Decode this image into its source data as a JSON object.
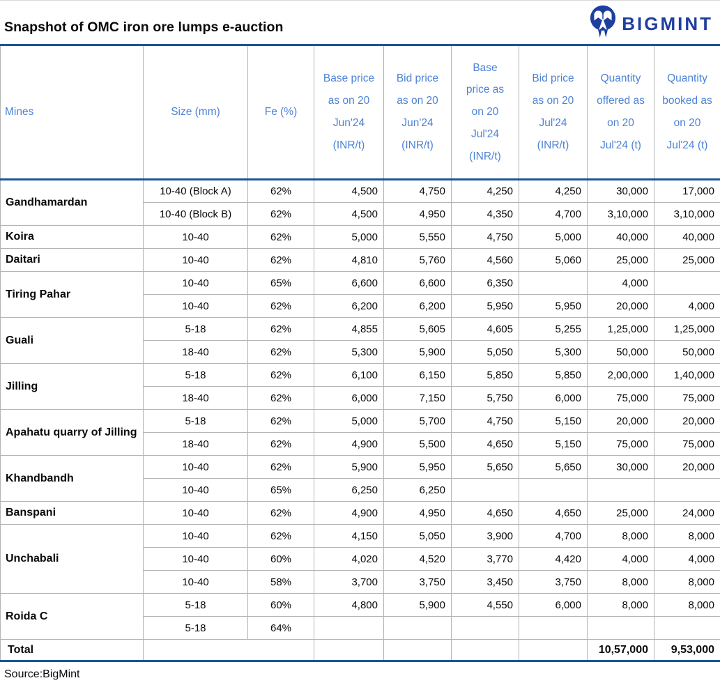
{
  "header": {
    "title": "Snapshot of OMC iron ore lumps e-auction",
    "logo_text": "BIGMINT"
  },
  "footer": {
    "source": "Source:BigMint"
  },
  "colors": {
    "accent_line_blue": "#1a5599",
    "header_text_blue": "#4d82d6",
    "logo_navy": "#1e3fa0",
    "grid_gray": "#b3b3b3"
  },
  "chart_data": {
    "type": "table",
    "title": "Snapshot of OMC iron ore lumps e-auction",
    "source": "Source:BigMint",
    "columns": [
      "Mines",
      "Size (mm)",
      "Fe (%)",
      "Base price as on 20 Jun'24 (INR/t)",
      "Bid price as on 20 Jun'24 (INR/t)",
      "Base price as on 20 Jul'24 (INR/t)",
      "Bid price as on 20 Jul'24 (INR/t)",
      "Quantity offered as on 20 Jul'24 (t)",
      "Quantity booked as on 20 Jul'24 (t)"
    ],
    "groups": [
      {
        "mine": "Gandhamardan",
        "rows": [
          {
            "size": "10-40 (Block A)",
            "fe": "62%",
            "base_jun": "4,500",
            "bid_jun": "4,750",
            "base_jul": "4,250",
            "bid_jul": "4,250",
            "qty_offered": "30,000",
            "qty_booked": "17,000"
          },
          {
            "size": "10-40 (Block B)",
            "fe": "62%",
            "base_jun": "4,500",
            "bid_jun": "4,950",
            "base_jul": "4,350",
            "bid_jul": "4,700",
            "qty_offered": "3,10,000",
            "qty_booked": "3,10,000"
          }
        ]
      },
      {
        "mine": "Koira",
        "rows": [
          {
            "size": "10-40",
            "fe": "62%",
            "base_jun": "5,000",
            "bid_jun": "5,550",
            "base_jul": "4,750",
            "bid_jul": "5,000",
            "qty_offered": "40,000",
            "qty_booked": "40,000"
          }
        ]
      },
      {
        "mine": "Daitari",
        "rows": [
          {
            "size": "10-40",
            "fe": "62%",
            "base_jun": "4,810",
            "bid_jun": "5,760",
            "base_jul": "4,560",
            "bid_jul": "5,060",
            "qty_offered": "25,000",
            "qty_booked": "25,000"
          }
        ]
      },
      {
        "mine": "Tiring Pahar",
        "rows": [
          {
            "size": "10-40",
            "fe": "65%",
            "base_jun": "6,600",
            "bid_jun": "6,600",
            "base_jul": "6,350",
            "bid_jul": "",
            "qty_offered": "4,000",
            "qty_booked": ""
          },
          {
            "size": "10-40",
            "fe": "62%",
            "base_jun": "6,200",
            "bid_jun": "6,200",
            "base_jul": "5,950",
            "bid_jul": "5,950",
            "qty_offered": "20,000",
            "qty_booked": "4,000"
          }
        ]
      },
      {
        "mine": "Guali",
        "rows": [
          {
            "size": "5-18",
            "fe": "62%",
            "base_jun": "4,855",
            "bid_jun": "5,605",
            "base_jul": "4,605",
            "bid_jul": "5,255",
            "qty_offered": "1,25,000",
            "qty_booked": "1,25,000"
          },
          {
            "size": "18-40",
            "fe": "62%",
            "base_jun": "5,300",
            "bid_jun": "5,900",
            "base_jul": "5,050",
            "bid_jul": "5,300",
            "qty_offered": "50,000",
            "qty_booked": "50,000"
          }
        ]
      },
      {
        "mine": "Jilling",
        "rows": [
          {
            "size": "5-18",
            "fe": "62%",
            "base_jun": "6,100",
            "bid_jun": "6,150",
            "base_jul": "5,850",
            "bid_jul": "5,850",
            "qty_offered": "2,00,000",
            "qty_booked": "1,40,000"
          },
          {
            "size": "18-40",
            "fe": "62%",
            "base_jun": "6,000",
            "bid_jun": "7,150",
            "base_jul": "5,750",
            "bid_jul": "6,000",
            "qty_offered": "75,000",
            "qty_booked": "75,000"
          }
        ]
      },
      {
        "mine": "Apahatu quarry of Jilling",
        "rows": [
          {
            "size": "5-18",
            "fe": "62%",
            "base_jun": "5,000",
            "bid_jun": "5,700",
            "base_jul": "4,750",
            "bid_jul": "5,150",
            "qty_offered": "20,000",
            "qty_booked": "20,000"
          },
          {
            "size": "18-40",
            "fe": "62%",
            "base_jun": "4,900",
            "bid_jun": "5,500",
            "base_jul": "4,650",
            "bid_jul": "5,150",
            "qty_offered": "75,000",
            "qty_booked": "75,000"
          }
        ]
      },
      {
        "mine": "Khandbandh",
        "rows": [
          {
            "size": "10-40",
            "fe": "62%",
            "base_jun": "5,900",
            "bid_jun": "5,950",
            "base_jul": "5,650",
            "bid_jul": "5,650",
            "qty_offered": "30,000",
            "qty_booked": "20,000"
          },
          {
            "size": "10-40",
            "fe": "65%",
            "base_jun": "6,250",
            "bid_jun": "6,250",
            "base_jul": "",
            "bid_jul": "",
            "qty_offered": "",
            "qty_booked": ""
          }
        ]
      },
      {
        "mine": "Banspani",
        "rows": [
          {
            "size": "10-40",
            "fe": "62%",
            "base_jun": "4,900",
            "bid_jun": "4,950",
            "base_jul": "4,650",
            "bid_jul": "4,650",
            "qty_offered": "25,000",
            "qty_booked": "24,000"
          }
        ]
      },
      {
        "mine": "Unchabali",
        "rows": [
          {
            "size": "10-40",
            "fe": "62%",
            "base_jun": "4,150",
            "bid_jun": "5,050",
            "base_jul": "3,900",
            "bid_jul": "4,700",
            "qty_offered": "8,000",
            "qty_booked": "8,000"
          },
          {
            "size": "10-40",
            "fe": "60%",
            "base_jun": "4,020",
            "bid_jun": "4,520",
            "base_jul": "3,770",
            "bid_jul": "4,420",
            "qty_offered": "4,000",
            "qty_booked": "4,000"
          },
          {
            "size": "10-40",
            "fe": "58%",
            "base_jun": "3,700",
            "bid_jun": "3,750",
            "base_jul": "3,450",
            "bid_jul": "3,750",
            "qty_offered": "8,000",
            "qty_booked": "8,000"
          }
        ]
      },
      {
        "mine": "Roida C",
        "rows": [
          {
            "size": "5-18",
            "fe": "60%",
            "base_jun": "4,800",
            "bid_jun": "5,900",
            "base_jul": "4,550",
            "bid_jul": "6,000",
            "qty_offered": "8,000",
            "qty_booked": "8,000"
          },
          {
            "size": "5-18",
            "fe": "64%",
            "base_jun": "",
            "bid_jun": "",
            "base_jul": "",
            "bid_jul": "",
            "qty_offered": "",
            "qty_booked": ""
          }
        ]
      }
    ],
    "total_row": {
      "label": "Total",
      "qty_offered": "10,57,000",
      "qty_booked": "9,53,000"
    }
  }
}
